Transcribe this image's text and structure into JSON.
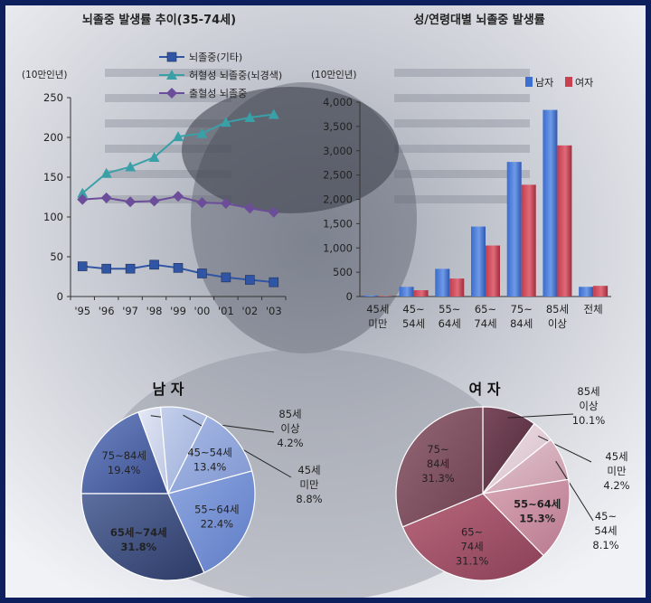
{
  "charts": {
    "line": {
      "title": "뇌졸중 발생률 추이(35-74세)",
      "unit": "(10만인년)"
    },
    "bar": {
      "title": "성/연령대별 뇌졸중 발생률",
      "unit": "(10만인년)"
    },
    "pie_male": {
      "title": "남 자"
    },
    "pie_female": {
      "title": "여 자"
    }
  },
  "chart_data": [
    {
      "type": "line",
      "title": "뇌졸중 발생률 추이(35-74세)",
      "ylabel": "(10만인년)",
      "x": [
        "'95",
        "'96",
        "'97",
        "'98",
        "'99",
        "'00",
        "'01",
        "'02",
        "'03"
      ],
      "ylim": [
        0,
        250
      ],
      "yticks": [
        "0",
        "50",
        "100",
        "150",
        "200",
        "250"
      ],
      "grid": false,
      "legend": "top",
      "series": [
        {
          "name": "뇌졸중(기타)",
          "values": [
            38,
            35,
            35,
            40,
            36,
            29,
            24,
            21,
            18
          ],
          "color": "#2f55a4",
          "marker": "square"
        },
        {
          "name": "허혈성 뇌졸중(뇌경색)",
          "values": [
            130,
            155,
            163,
            175,
            201,
            205,
            219,
            225,
            229
          ],
          "color": "#3aa0a8",
          "marker": "triangle"
        },
        {
          "name": "출혈성 뇌졸중",
          "values": [
            122,
            124,
            119,
            120,
            126,
            118,
            117,
            111,
            106
          ],
          "color": "#6c4d9a",
          "marker": "diamond"
        }
      ]
    },
    {
      "type": "bar",
      "title": "성/연령대별 뇌졸중 발생률",
      "ylabel": "(10만인년)",
      "categories": [
        [
          "45세",
          "미만"
        ],
        [
          "45~",
          "54세"
        ],
        [
          "55~",
          "64세"
        ],
        [
          "65~",
          "74세"
        ],
        [
          "75~",
          "84세"
        ],
        [
          "85세",
          "이상"
        ],
        [
          "전체"
        ]
      ],
      "ylim": [
        0,
        4000
      ],
      "yticks": [
        "0",
        "500",
        "1,000",
        "1,500",
        "2,000",
        "2,500",
        "3,000",
        "3,500",
        "4,000"
      ],
      "legend": "top-right",
      "series": [
        {
          "name": "남자",
          "values": [
            20,
            200,
            570,
            1440,
            2770,
            3840,
            200
          ],
          "color": "#3d6fd0"
        },
        {
          "name": "여자",
          "values": [
            10,
            130,
            370,
            1050,
            2300,
            3110,
            220
          ],
          "color": "#c94050"
        }
      ]
    },
    {
      "type": "pie",
      "title": "남 자",
      "slices": [
        {
          "label": [
            "75~84세"
          ],
          "pct": "19.4%",
          "value": 19.4,
          "fill": "gM0",
          "text_color": "#ffffff",
          "bold": false
        },
        {
          "label": [
            "85세",
            "이상"
          ],
          "pct": "4.2%",
          "value": 4.2,
          "fill": "gM1",
          "text_color": "#111111",
          "bold": false
        },
        {
          "label": [
            "45세",
            "미만"
          ],
          "pct": "8.8%",
          "value": 8.8,
          "fill": "gM2",
          "text_color": "#111111",
          "bold": false
        },
        {
          "label": [
            "45~54세"
          ],
          "pct": "13.4%",
          "value": 13.4,
          "fill": "gM3",
          "text_color": "#1a1a1a",
          "bold": false
        },
        {
          "label": [
            "55~64세"
          ],
          "pct": "22.4%",
          "value": 22.4,
          "fill": "gM4",
          "text_color": "#1a1a1a",
          "bold": false
        },
        {
          "label": [
            "65세~74세"
          ],
          "pct": "31.8%",
          "value": 31.8,
          "fill": "gM5",
          "text_color": "#1a1a1a",
          "bold": true
        }
      ]
    },
    {
      "type": "pie",
      "title": "여 자",
      "slices": [
        {
          "label": [
            "85세",
            "이상"
          ],
          "pct": "10.1%",
          "value": 10.1,
          "fill": "gF0",
          "text_color": "#111111",
          "bold": false
        },
        {
          "label": [
            "45세",
            "미만"
          ],
          "pct": "4.2%",
          "value": 4.2,
          "fill": "gF1",
          "text_color": "#111111",
          "bold": false
        },
        {
          "label": [
            "45~",
            "54세"
          ],
          "pct": "8.1%",
          "value": 8.1,
          "fill": "gF2",
          "text_color": "#111111",
          "bold": false
        },
        {
          "label": [
            "55~64세"
          ],
          "pct": "15.3%",
          "value": 15.3,
          "fill": "gF3",
          "text_color": "#1a1a1a",
          "bold": true
        },
        {
          "label": [
            "65~",
            "74세"
          ],
          "pct": "31.1%",
          "value": 31.1,
          "fill": "gF4",
          "text_color": "#ffffff",
          "bold": false
        },
        {
          "label": [
            "75~",
            "84세"
          ],
          "pct": "31.3%",
          "value": 31.3,
          "fill": "gF5",
          "text_color": "#ffffff",
          "bold": false
        }
      ]
    }
  ]
}
